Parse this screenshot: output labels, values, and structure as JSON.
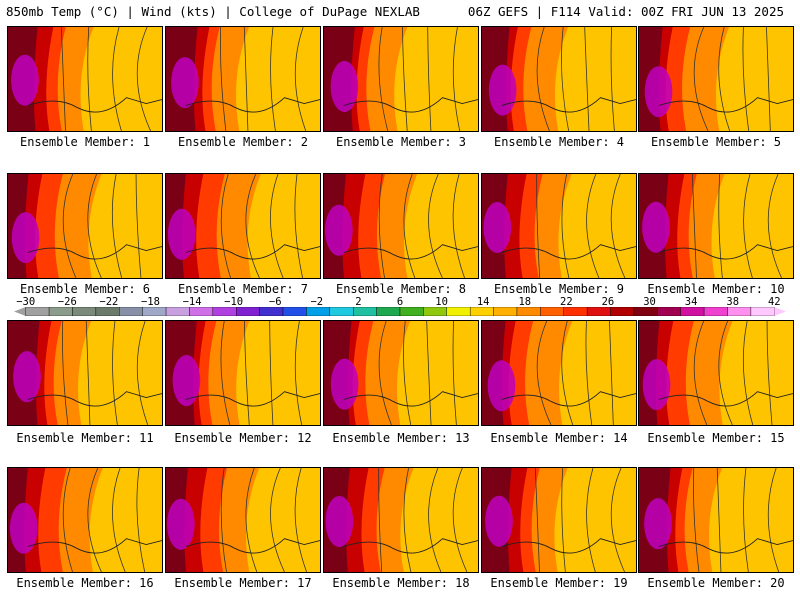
{
  "header": {
    "left_title": "850mb Temp (°C) | Wind (kts) | College of DuPage NEXLAB",
    "right_title": "06Z GEFS | F114 Valid: 00Z FRI JUN 13 2025"
  },
  "panels": [
    {
      "label": "Ensemble Member: 1"
    },
    {
      "label": "Ensemble Member: 2"
    },
    {
      "label": "Ensemble Member: 3"
    },
    {
      "label": "Ensemble Member: 4"
    },
    {
      "label": "Ensemble Member: 5"
    },
    {
      "label": "Ensemble Member: 6"
    },
    {
      "label": "Ensemble Member: 7"
    },
    {
      "label": "Ensemble Member: 8"
    },
    {
      "label": "Ensemble Member: 9"
    },
    {
      "label": "Ensemble Member: 10"
    },
    {
      "label": "Ensemble Member: 11"
    },
    {
      "label": "Ensemble Member: 12"
    },
    {
      "label": "Ensemble Member: 13"
    },
    {
      "label": "Ensemble Member: 14"
    },
    {
      "label": "Ensemble Member: 15"
    },
    {
      "label": "Ensemble Member: 16"
    },
    {
      "label": "Ensemble Member: 17"
    },
    {
      "label": "Ensemble Member: 18"
    },
    {
      "label": "Ensemble Member: 19"
    },
    {
      "label": "Ensemble Member: 20"
    }
  ],
  "colorbar": {
    "labels": [
      "−30",
      "−26",
      "−22",
      "−18",
      "−14",
      "−10",
      "−6",
      "−2",
      "2",
      "6",
      "10",
      "14",
      "18",
      "22",
      "26",
      "30",
      "34",
      "38",
      "42"
    ],
    "colors": [
      "#a0a0a0",
      "#8c9c8c",
      "#7c8a7c",
      "#6c7a6c",
      "#8890a8",
      "#a0a8c8",
      "#c8a0e0",
      "#d070e8",
      "#b040e0",
      "#8020d0",
      "#4030d0",
      "#2050e8",
      "#00a0e8",
      "#20c8e0",
      "#20c0a0",
      "#20a850",
      "#40b020",
      "#90c810",
      "#f0f000",
      "#ffd000",
      "#ffb000",
      "#ff8c00",
      "#ff6000",
      "#ff3000",
      "#e01010",
      "#b00000",
      "#800010",
      "#a00050",
      "#d010a0",
      "#f040d0",
      "#ff90f0",
      "#ffc8ff"
    ],
    "temperature_palette": {
      "cool_east": "#ffc400",
      "warm_mid": "#ff8a00",
      "hot_mid": "#ff3b00",
      "very_hot": "#c80000",
      "extreme": "#7a0015",
      "magenta": "#c000c0"
    }
  }
}
